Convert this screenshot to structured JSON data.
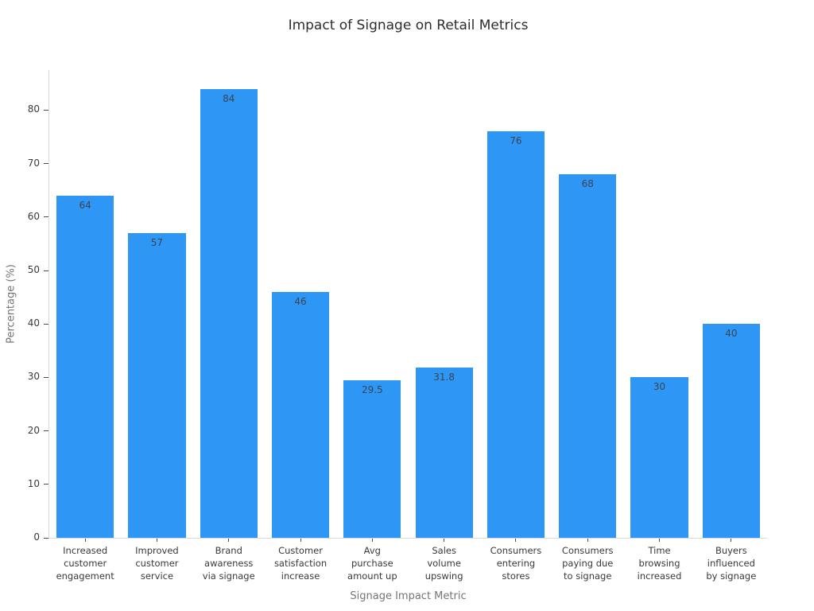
{
  "chart_data": {
    "type": "bar",
    "title": "Impact of Signage on Retail Metrics",
    "xlabel": "Signage Impact Metric",
    "ylabel": "Percentage (%)",
    "categories": [
      "Increased\ncustomer\nengagement",
      "Improved\ncustomer\nservice",
      "Brand\nawareness\nvia signage",
      "Customer\nsatisfaction\nincrease",
      "Avg\npurchase\namount up",
      "Sales\nvolume\nupswing",
      "Consumers\nentering\nstores",
      "Consumers\npaying due\nto signage",
      "Time\nbrowsing\nincreased",
      "Buyers\ninfluenced\nby signage"
    ],
    "values": [
      64,
      57,
      84,
      46,
      29.5,
      31.8,
      76,
      68,
      30,
      40
    ],
    "value_labels": [
      "64",
      "57",
      "84",
      "46",
      "29.5",
      "31.8",
      "76",
      "68",
      "30",
      "40"
    ],
    "yticks": [
      0,
      10,
      20,
      30,
      40,
      50,
      60,
      70,
      80
    ],
    "ylim": [
      0,
      87.5
    ],
    "grid": false,
    "legend": null,
    "bar_color": "#2E96F5",
    "spine_color": "#d9d9d9",
    "tick_color": "#4a4a4a",
    "tick_label_color": "#3a3a3a",
    "value_label_color": "#3d4450",
    "axis_title_color": "#757575",
    "title_color": "#2d2d2d"
  }
}
